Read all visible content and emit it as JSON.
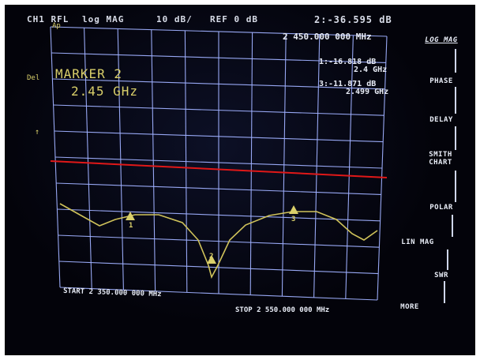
{
  "header": {
    "channel": "CH1 RFL",
    "format": "log MAG",
    "scale": "10 dB/",
    "reference": "REF 0 dB",
    "active_marker_readout": "2:-36.595 dB"
  },
  "left_labels": {
    "del": "Del",
    "ap": "Ap"
  },
  "marker_info": {
    "title": "MARKER 2",
    "freq": "2.45 GHz",
    "top_freq": "2 450.000 000 MHz",
    "marker1": {
      "id": "1",
      "value": ":-16.818 dB",
      "freq": "2.4 GHz"
    },
    "marker3": {
      "id": "3",
      "value": ":-11.871 dB",
      "freq": "2.499 GHz"
    }
  },
  "footer": {
    "start": "START 2 350.000 000 MHz",
    "stop": "STOP 2 550.000 000 MHz"
  },
  "softkeys": [
    "LOG MAG",
    "PHASE",
    "DELAY",
    "SMITH CHART",
    "POLAR",
    "LIN MAG",
    "SWR",
    "MORE"
  ],
  "markers": [
    {
      "label": "1",
      "freq_mhz": 2400
    },
    {
      "label": "2",
      "freq_mhz": 2450
    },
    {
      "label": "3",
      "freq_mhz": 2499
    }
  ],
  "colors": {
    "grid": "#9fb0ff",
    "trace": "#cfc25a",
    "reference": "#e01818",
    "text": "#e8ecf6"
  }
}
